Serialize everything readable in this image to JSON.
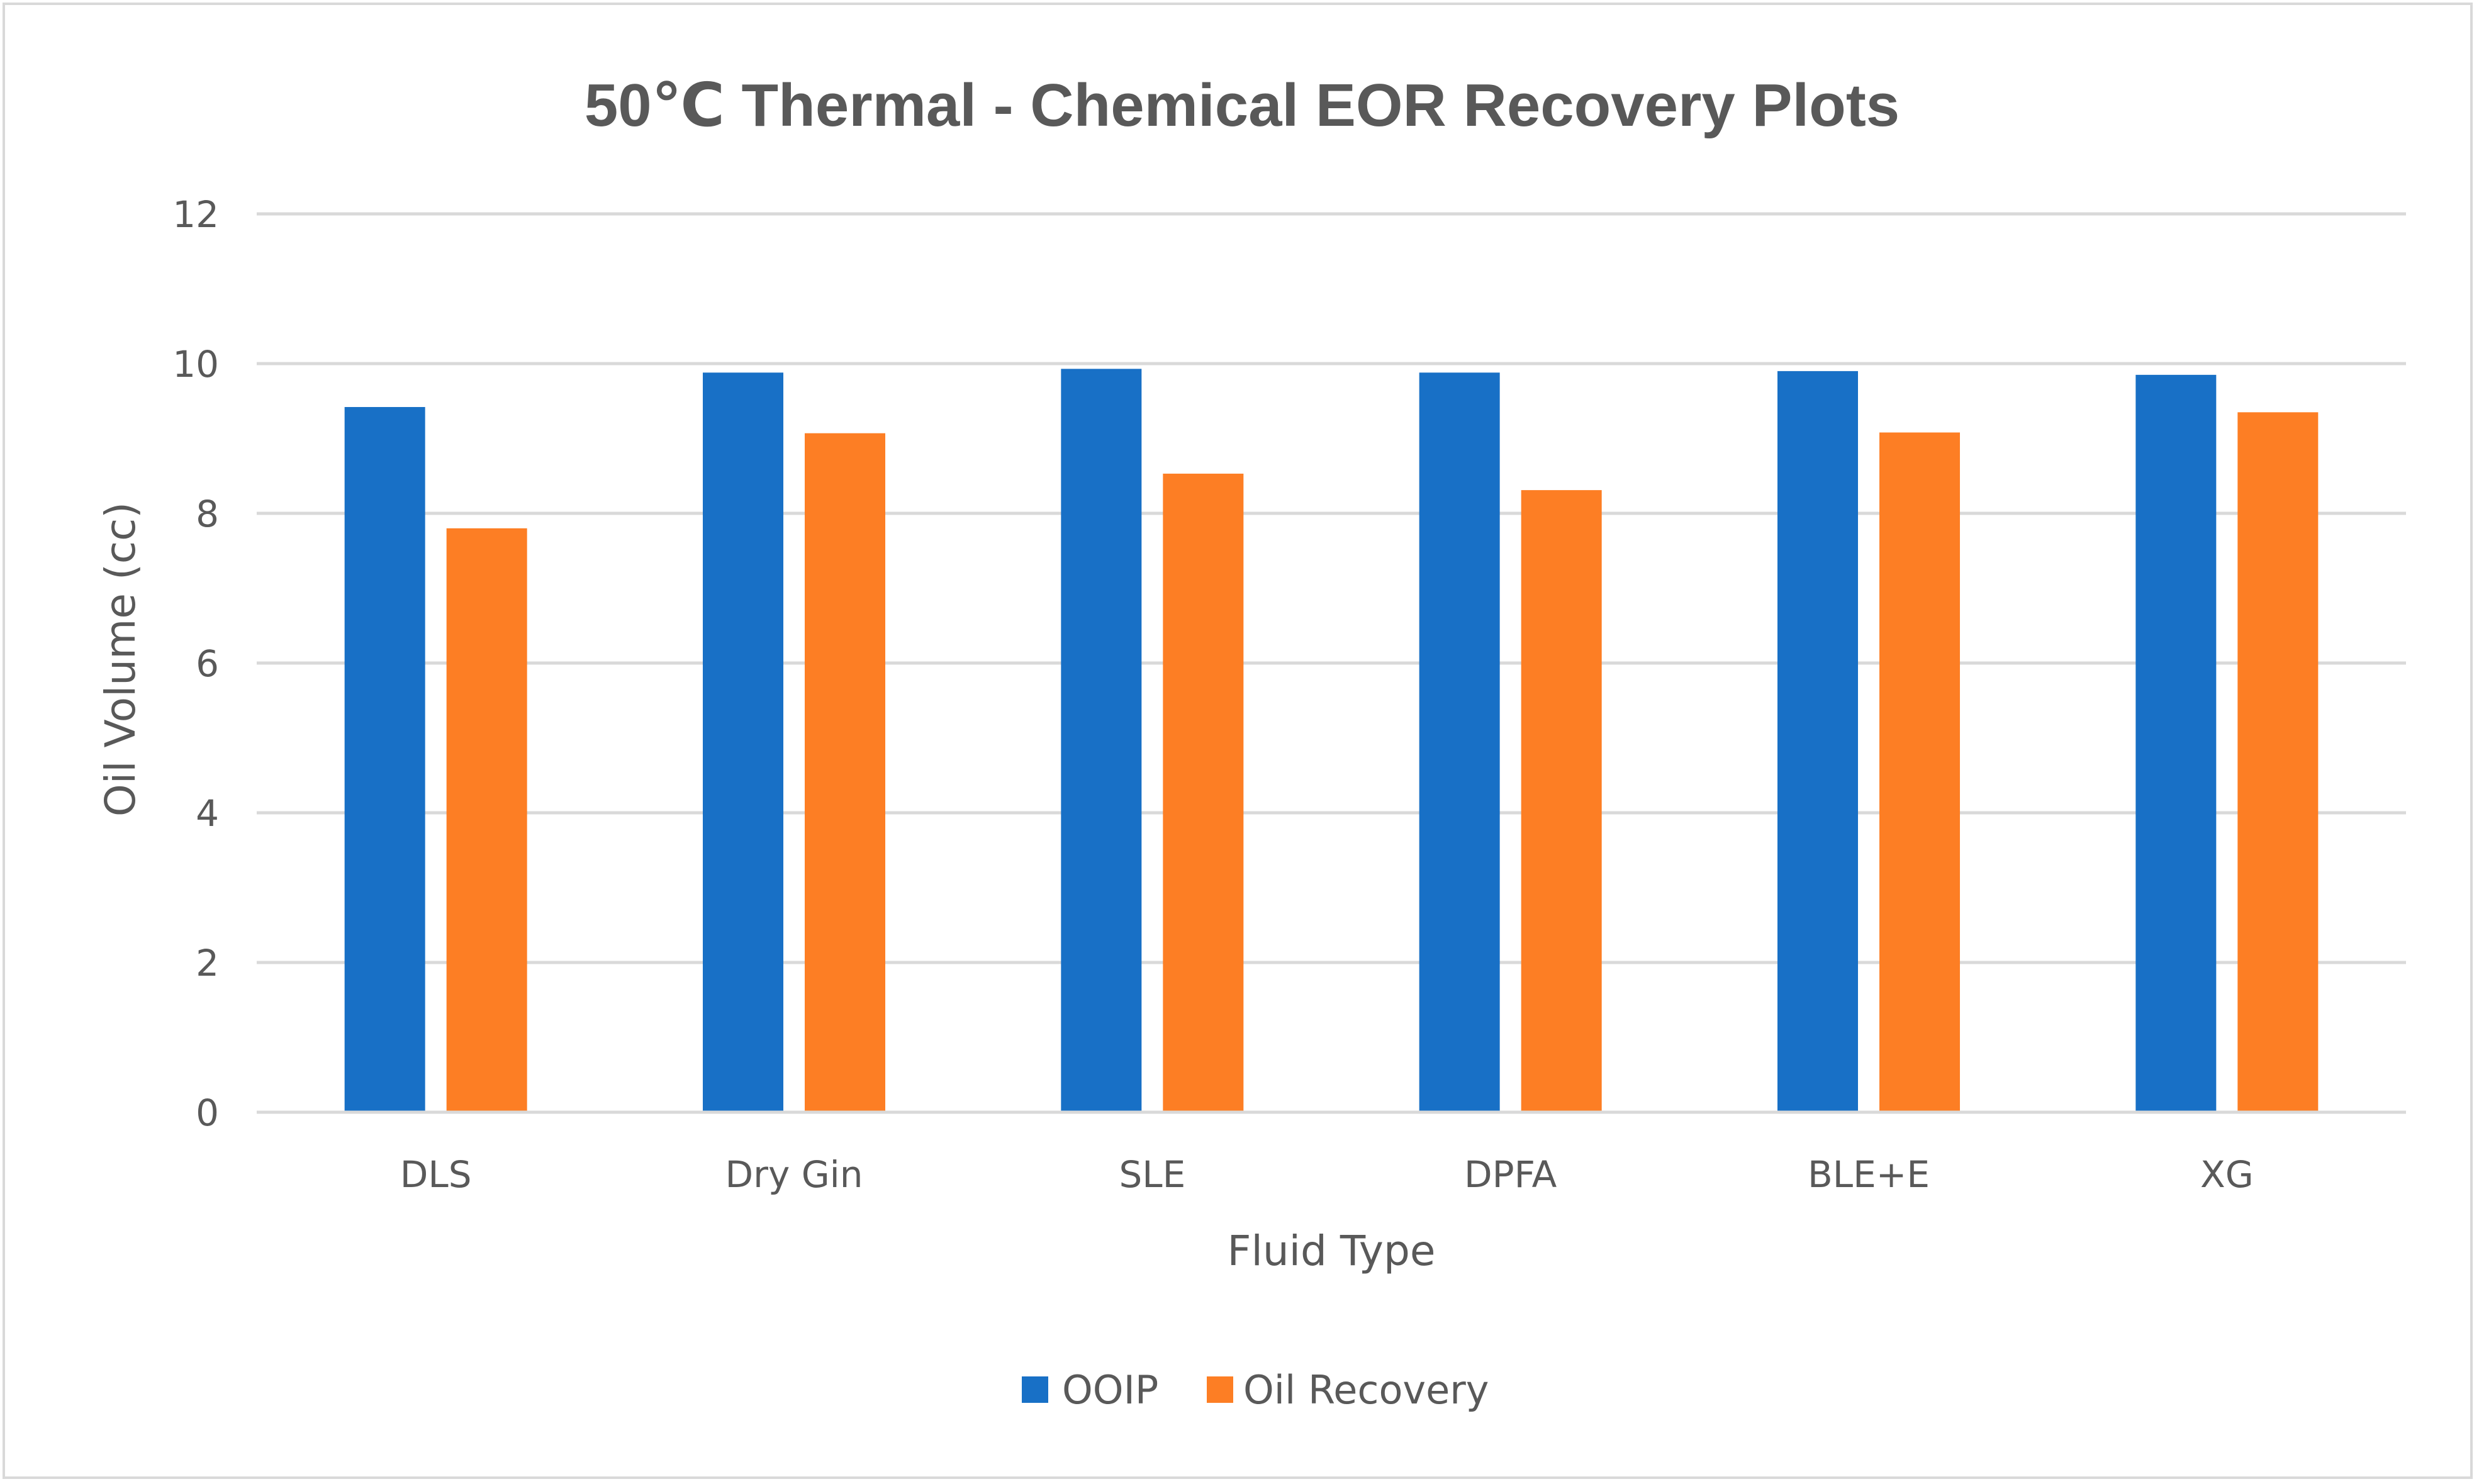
{
  "chart_data": {
    "type": "bar",
    "title": "50℃ Thermal - Chemical EOR Recovery Plots",
    "xlabel": "Fluid Type",
    "ylabel": "Oil Volume (cc)",
    "ylim": [
      0,
      12
    ],
    "yticks": [
      0,
      2,
      4,
      6,
      8,
      10,
      12
    ],
    "grid": true,
    "legend_position": "bottom",
    "categories": [
      "DLS",
      "Dry Gin",
      "SLE",
      "DPFA",
      "BLE+E",
      "XG"
    ],
    "series": [
      {
        "name": "OOIP",
        "color": "#1870c6",
        "values": [
          9.42,
          9.88,
          9.93,
          9.88,
          9.9,
          9.85
        ]
      },
      {
        "name": "Oil Recovery",
        "color": "#fd7e24",
        "values": [
          7.8,
          9.07,
          8.53,
          8.31,
          9.08,
          9.35
        ]
      }
    ]
  }
}
